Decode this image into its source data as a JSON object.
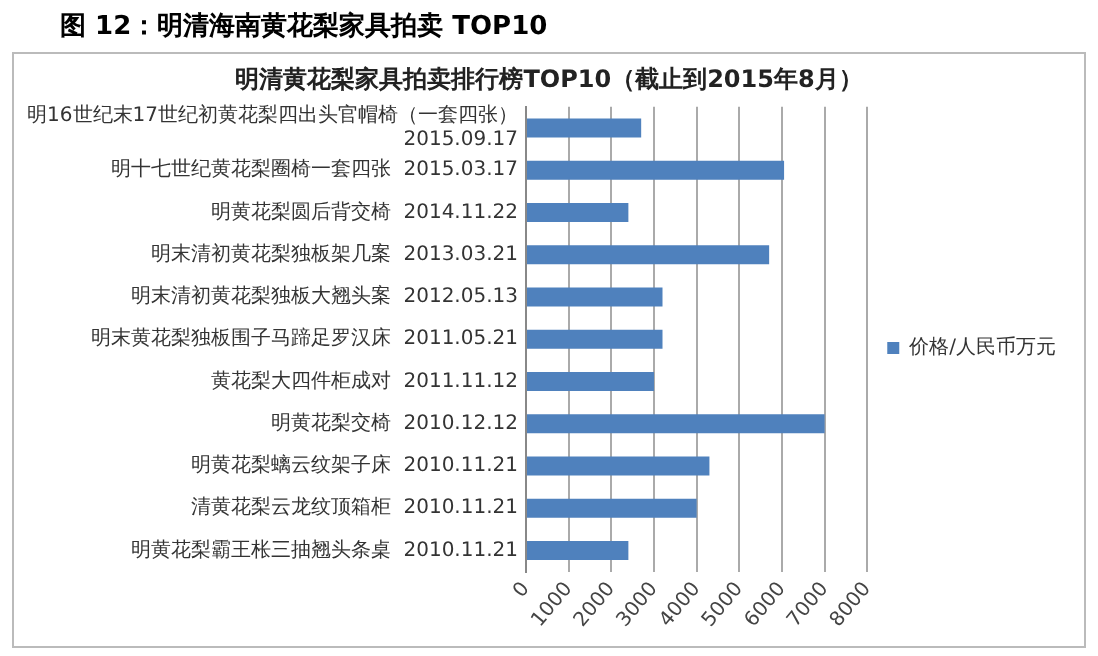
{
  "chart_data": {
    "type": "bar",
    "orientation": "horizontal",
    "title": "明清黄花梨家具拍卖排行榜TOP10（截止到2015年8月）",
    "annotations": [
      "图 12：明清海南黄花梨家具拍卖 TOP10"
    ],
    "categories": [
      "明16世纪末17世纪初黄花梨四出头官帽椅（一套四张）\n2015.09.17",
      "明十七世纪黄花梨圈椅一套四张  2015.03.17",
      "明黄花梨圆后背交椅  2014.11.22",
      "明末清初黄花梨独板架几案  2013.03.21",
      "明末清初黄花梨独板大翘头案  2012.05.13",
      "明末黄花梨独板围子马蹄足罗汉床  2011.05.21",
      "黄花梨大四件柜成对  2011.11.12",
      "明黄花梨交椅  2010.12.12",
      "明黄花梨螭云纹架子床  2010.11.21",
      "清黄花梨云龙纹顶箱柜  2010.11.21",
      "明黄花梨霸王枨三抽翘头条桌  2010.11.21"
    ],
    "series": [
      {
        "name": "价格/人民币万元",
        "color": "#4f81bd",
        "values": [
          2700,
          6050,
          2400,
          5700,
          3200,
          3200,
          3000,
          7000,
          4300,
          4000,
          2400
        ]
      }
    ],
    "xlim": [
      0,
      8000
    ],
    "xticks": [
      0,
      1000,
      2000,
      3000,
      4000,
      5000,
      6000,
      7000,
      8000
    ],
    "grid": "x",
    "legend": "right"
  }
}
